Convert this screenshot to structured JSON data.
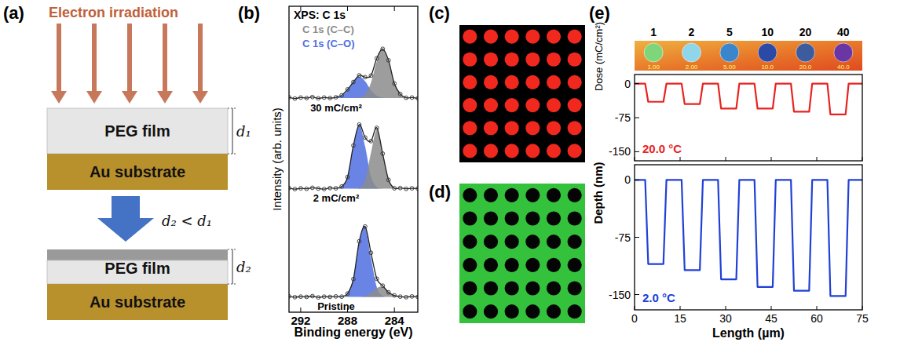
{
  "panel_labels": [
    "(a)",
    "(b)",
    "(c)",
    "(d)",
    "(e)"
  ],
  "diagram": {
    "title": "Electron irradiation",
    "before": {
      "film": "PEG film",
      "substrate": "Au substrate",
      "thickness": "d₁"
    },
    "relation": "d₂ < d₁",
    "after": {
      "film": "PEG film",
      "substrate": "Au substrate",
      "thickness": "d₂"
    }
  },
  "chart_data": [
    {
      "type": "line",
      "title": "XPS: C 1s",
      "x_label": "Binding energy (eV)",
      "y_label": "Intensity (arb. units)",
      "xlim": [
        293,
        282
      ],
      "xticks": [
        292,
        288,
        284
      ],
      "ylim": [
        -5,
        115
      ],
      "tick_labels": "x",
      "components": [
        {
          "name": "C 1s (C–C)",
          "color": "#8c8c8c"
        },
        {
          "name": "C 1s (C–O)",
          "color": "#4f6fe0"
        }
      ],
      "x": [
        293,
        292.5,
        292,
        291.5,
        291,
        290.5,
        290,
        289.5,
        289,
        288.5,
        288,
        287.5,
        287,
        286.5,
        286,
        285.5,
        285,
        284.5,
        284,
        283.5,
        283,
        282.5,
        282
      ],
      "series": [
        {
          "name": "30 mC/cm²",
          "color": "#222222",
          "marker": "circle",
          "values": [
            79.3,
            78.8,
            79.2,
            79.0,
            79.4,
            78.9,
            79.2,
            79.0,
            79.3,
            80.1,
            82.4,
            85.3,
            87.9,
            87.2,
            87.8,
            94.6,
            98.3,
            93.8,
            84.7,
            80.6,
            79.1,
            79.2,
            78.9
          ],
          "component_values": [
            [
              79,
              79,
              79,
              79,
              79,
              79,
              79,
              79,
              79,
              79,
              79,
              79,
              79.2,
              80.4,
              85.0,
              93.5,
              98.5,
              93.5,
              85.0,
              80.4,
              79.2,
              79,
              79
            ],
            [
              79,
              79,
              79,
              79,
              79,
              79,
              79,
              79,
              79.1,
              79.9,
              82.1,
              85.6,
              87.5,
              85.6,
              82.1,
              79.9,
              79.1,
              79,
              79,
              79,
              79,
              79,
              79
            ]
          ]
        },
        {
          "name": "2 mC/cm²",
          "color": "#222222",
          "marker": "circle",
          "values": [
            43.7,
            43.3,
            43.6,
            43.4,
            43.8,
            43.5,
            43.3,
            43.7,
            43.6,
            44.3,
            48.0,
            60.4,
            68.6,
            63.5,
            62.1,
            67.3,
            57.2,
            46.9,
            43.6,
            43.7,
            43.4,
            43.6,
            43.5
          ],
          "component_values": [
            [
              43.5,
              43.5,
              43.5,
              43.5,
              43.5,
              43.5,
              43.5,
              43.5,
              43.5,
              43.5,
              43.5,
              43.5,
              43.8,
              46.6,
              57.5,
              66.5,
              57.5,
              46.6,
              43.8,
              43.5,
              43.5,
              43.5,
              43.5
            ],
            [
              43.5,
              43.5,
              43.5,
              43.5,
              43.5,
              43.5,
              43.5,
              43.5,
              43.5,
              44.1,
              48.3,
              60.1,
              68.5,
              60.1,
              48.3,
              44.1,
              43.5,
              43.5,
              43.5,
              43.5,
              43.5,
              43.5,
              43.5
            ]
          ]
        },
        {
          "name": "Pristine",
          "color": "#222222",
          "marker": "circle",
          "values": [
            1.2,
            0.9,
            1.1,
            1.0,
            1.3,
            0.8,
            1.1,
            1.0,
            1.2,
            1.1,
            2.3,
            8.0,
            22.8,
            28.6,
            18.3,
            8.1,
            5.4,
            2.8,
            1.6,
            1.1,
            0.9,
            1.2,
            1.0
          ],
          "component_values": [
            [
              1,
              1,
              1,
              1,
              1,
              1,
              1,
              1,
              1,
              1,
              1,
              1,
              1,
              1.4,
              2.6,
              4.5,
              4.8,
              3.0,
              1.5,
              1,
              1,
              1,
              1
            ],
            [
              1,
              1,
              1,
              1,
              1,
              1,
              1,
              1,
              1,
              1,
              2.1,
              8.3,
              22.5,
              28.5,
              16.4,
              4.8,
              1.4,
              1,
              1,
              1,
              1,
              1,
              1
            ]
          ]
        }
      ]
    },
    {
      "type": "line",
      "xlim": [
        0,
        75
      ],
      "xticks": [
        0,
        15,
        30,
        45,
        60,
        75
      ],
      "ylim": [
        -170,
        20
      ],
      "yticks": [
        0,
        -75,
        -150
      ],
      "tick_labels": "y",
      "x": [
        0,
        3.5,
        4.5,
        9.5,
        10.5,
        15.5,
        16.5,
        21.5,
        22.5,
        27.5,
        28.5,
        33.5,
        34.5,
        39.5,
        40.5,
        45.5,
        46.5,
        51.5,
        52.5,
        57.5,
        58.5,
        63.5,
        64.5,
        69.5,
        70.5,
        75
      ],
      "series": [
        {
          "name": "20.0 °C",
          "color": "#e8231f",
          "values": [
            0,
            0,
            -40,
            -40,
            0,
            0,
            -45,
            -45,
            0,
            0,
            -55,
            -55,
            0,
            0,
            -55,
            -55,
            0,
            0,
            -62,
            -62,
            0,
            0,
            -68,
            -68,
            0,
            0
          ]
        }
      ]
    },
    {
      "type": "line",
      "x_label": "Length (µm)",
      "y_label": "Depth (nm)",
      "xlim": [
        0,
        75
      ],
      "xticks": [
        0,
        15,
        30,
        45,
        60,
        75
      ],
      "ylim": [
        -170,
        20
      ],
      "yticks": [
        0,
        -75,
        -150
      ],
      "x": [
        0,
        3.5,
        4.5,
        9.5,
        10.5,
        15.5,
        16.5,
        21.5,
        22.5,
        27.5,
        28.5,
        33.5,
        34.5,
        39.5,
        40.5,
        45.5,
        46.5,
        51.5,
        52.5,
        57.5,
        58.5,
        63.5,
        64.5,
        69.5,
        70.5,
        75
      ],
      "series": [
        {
          "name": "2.0 °C",
          "color": "#2040d8",
          "values": [
            0,
            0,
            -110,
            -110,
            0,
            0,
            -118,
            -118,
            0,
            0,
            -130,
            -130,
            0,
            0,
            -140,
            -140,
            0,
            0,
            -145,
            -145,
            0,
            0,
            -152,
            -152,
            0,
            0
          ]
        }
      ]
    }
  ],
  "images": [
    {
      "rows": 6,
      "cols": 6,
      "background": "#000000",
      "spot_color": "#f0281e"
    },
    {
      "rows": 6,
      "cols": 6,
      "background": "#34c23c",
      "spot_color": "#050505"
    }
  ],
  "dose_strip": {
    "label": "Dose (mC/cm²)",
    "doses": [
      1,
      2,
      5,
      10,
      20,
      40
    ],
    "dose_labels": [
      "1.00",
      "2.00",
      "5.00",
      "10.0",
      "20.0",
      "40.0"
    ],
    "colors": [
      "#7fd67a",
      "#8fd6ea",
      "#3a86cc",
      "#2a4aa6",
      "#3d5c9e",
      "#6a36a4"
    ]
  }
}
